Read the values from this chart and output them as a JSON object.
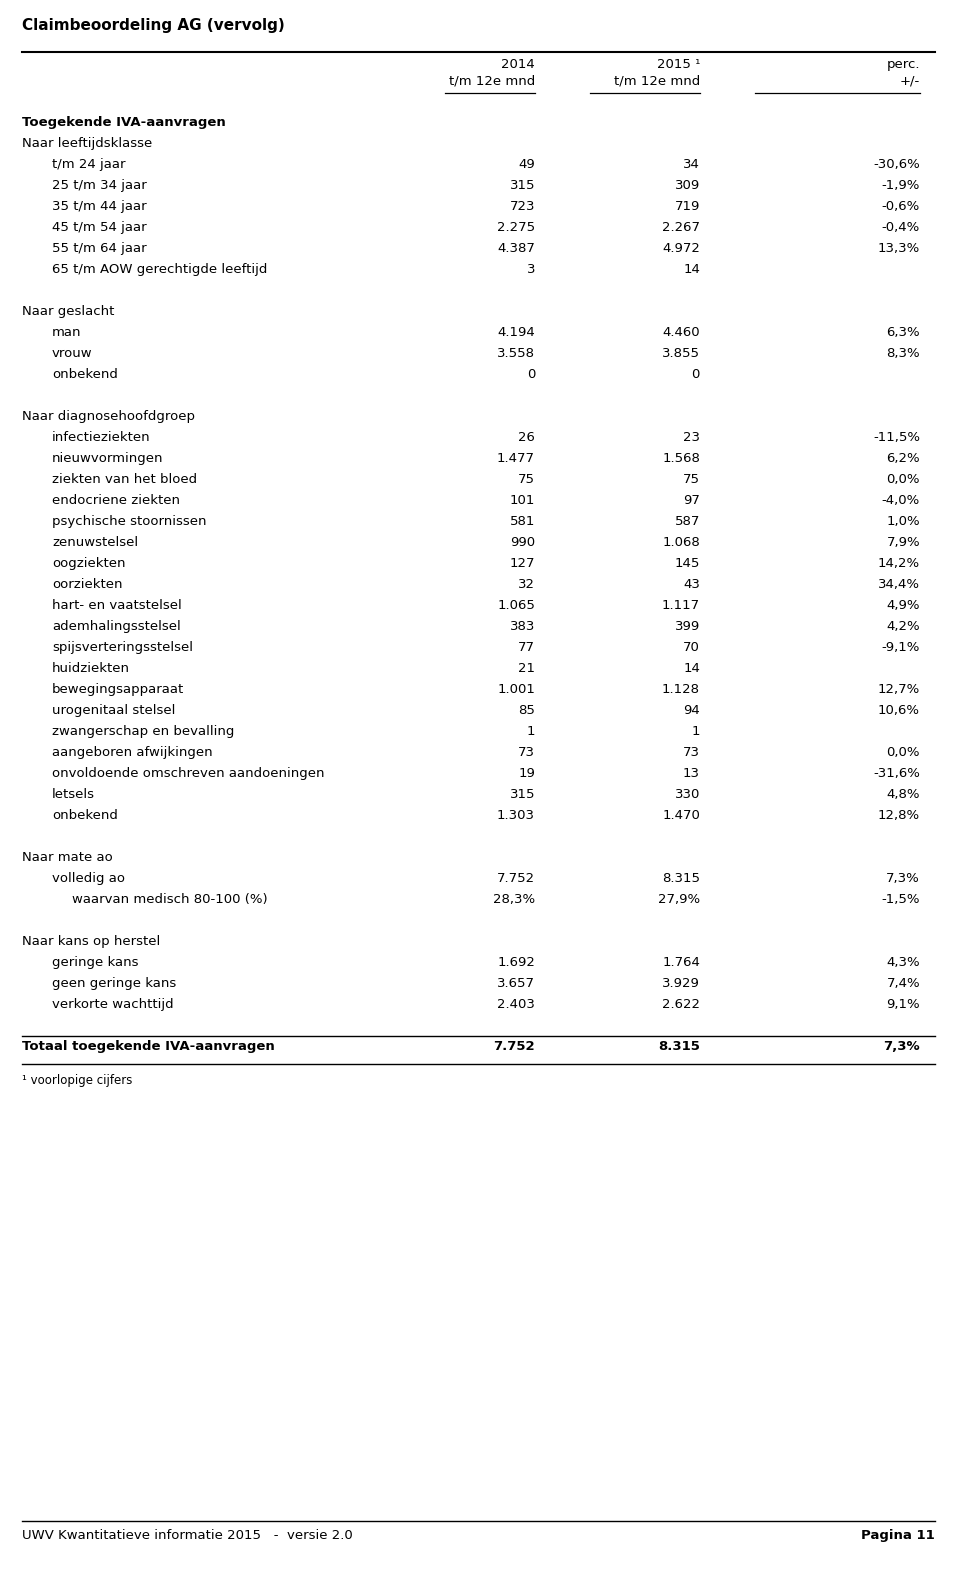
{
  "title": "Claimbeoordeling AG (vervolg)",
  "footer_left": "UWV Kwantitatieve informatie 2015   -  versie 2.0",
  "footer_right": "Pagina 11",
  "footnote": "¹ voorlopige cijfers",
  "rows": [
    {
      "label": "Toegekende IVA-aanvragen",
      "indent": 0,
      "bold": true,
      "v2014": "",
      "v2015": "",
      "perc": ""
    },
    {
      "label": "Naar leeftijdsklasse",
      "indent": 0,
      "bold": false,
      "v2014": "",
      "v2015": "",
      "perc": ""
    },
    {
      "label": "t/m 24 jaar",
      "indent": 2,
      "bold": false,
      "v2014": "49",
      "v2015": "34",
      "perc": "-30,6%"
    },
    {
      "label": "25 t/m 34 jaar",
      "indent": 2,
      "bold": false,
      "v2014": "315",
      "v2015": "309",
      "perc": "-1,9%"
    },
    {
      "label": "35 t/m 44 jaar",
      "indent": 2,
      "bold": false,
      "v2014": "723",
      "v2015": "719",
      "perc": "-0,6%"
    },
    {
      "label": "45 t/m 54 jaar",
      "indent": 2,
      "bold": false,
      "v2014": "2.275",
      "v2015": "2.267",
      "perc": "-0,4%"
    },
    {
      "label": "55 t/m 64 jaar",
      "indent": 2,
      "bold": false,
      "v2014": "4.387",
      "v2015": "4.972",
      "perc": "13,3%"
    },
    {
      "label": "65 t/m AOW gerechtigde leeftijd",
      "indent": 2,
      "bold": false,
      "v2014": "3",
      "v2015": "14",
      "perc": ""
    },
    {
      "label": "",
      "indent": 0,
      "bold": false,
      "v2014": "",
      "v2015": "",
      "perc": ""
    },
    {
      "label": "Naar geslacht",
      "indent": 0,
      "bold": false,
      "v2014": "",
      "v2015": "",
      "perc": ""
    },
    {
      "label": "man",
      "indent": 2,
      "bold": false,
      "v2014": "4.194",
      "v2015": "4.460",
      "perc": "6,3%"
    },
    {
      "label": "vrouw",
      "indent": 2,
      "bold": false,
      "v2014": "3.558",
      "v2015": "3.855",
      "perc": "8,3%"
    },
    {
      "label": "onbekend",
      "indent": 2,
      "bold": false,
      "v2014": "0",
      "v2015": "0",
      "perc": ""
    },
    {
      "label": "",
      "indent": 0,
      "bold": false,
      "v2014": "",
      "v2015": "",
      "perc": ""
    },
    {
      "label": "Naar diagnosehoofdgroep",
      "indent": 0,
      "bold": false,
      "v2014": "",
      "v2015": "",
      "perc": ""
    },
    {
      "label": "infectieziekten",
      "indent": 2,
      "bold": false,
      "v2014": "26",
      "v2015": "23",
      "perc": "-11,5%"
    },
    {
      "label": "nieuwvormingen",
      "indent": 2,
      "bold": false,
      "v2014": "1.477",
      "v2015": "1.568",
      "perc": "6,2%"
    },
    {
      "label": "ziekten van het bloed",
      "indent": 2,
      "bold": false,
      "v2014": "75",
      "v2015": "75",
      "perc": "0,0%"
    },
    {
      "label": "endocriene ziekten",
      "indent": 2,
      "bold": false,
      "v2014": "101",
      "v2015": "97",
      "perc": "-4,0%"
    },
    {
      "label": "psychische stoornissen",
      "indent": 2,
      "bold": false,
      "v2014": "581",
      "v2015": "587",
      "perc": "1,0%"
    },
    {
      "label": "zenuwstelsel",
      "indent": 2,
      "bold": false,
      "v2014": "990",
      "v2015": "1.068",
      "perc": "7,9%"
    },
    {
      "label": "oogziekten",
      "indent": 2,
      "bold": false,
      "v2014": "127",
      "v2015": "145",
      "perc": "14,2%"
    },
    {
      "label": "oorziekten",
      "indent": 2,
      "bold": false,
      "v2014": "32",
      "v2015": "43",
      "perc": "34,4%"
    },
    {
      "label": "hart- en vaatstelsel",
      "indent": 2,
      "bold": false,
      "v2014": "1.065",
      "v2015": "1.117",
      "perc": "4,9%"
    },
    {
      "label": "ademhalingsstelsel",
      "indent": 2,
      "bold": false,
      "v2014": "383",
      "v2015": "399",
      "perc": "4,2%"
    },
    {
      "label": "spijsverteringsstelsel",
      "indent": 2,
      "bold": false,
      "v2014": "77",
      "v2015": "70",
      "perc": "-9,1%"
    },
    {
      "label": "huidziekten",
      "indent": 2,
      "bold": false,
      "v2014": "21",
      "v2015": "14",
      "perc": ""
    },
    {
      "label": "bewegingsapparaat",
      "indent": 2,
      "bold": false,
      "v2014": "1.001",
      "v2015": "1.128",
      "perc": "12,7%"
    },
    {
      "label": "urogenitaal stelsel",
      "indent": 2,
      "bold": false,
      "v2014": "85",
      "v2015": "94",
      "perc": "10,6%"
    },
    {
      "label": "zwangerschap en bevalling",
      "indent": 2,
      "bold": false,
      "v2014": "1",
      "v2015": "1",
      "perc": ""
    },
    {
      "label": "aangeboren afwijkingen",
      "indent": 2,
      "bold": false,
      "v2014": "73",
      "v2015": "73",
      "perc": "0,0%"
    },
    {
      "label": "onvoldoende omschreven aandoeningen",
      "indent": 2,
      "bold": false,
      "v2014": "19",
      "v2015": "13",
      "perc": "-31,6%"
    },
    {
      "label": "letsels",
      "indent": 2,
      "bold": false,
      "v2014": "315",
      "v2015": "330",
      "perc": "4,8%"
    },
    {
      "label": "onbekend",
      "indent": 2,
      "bold": false,
      "v2014": "1.303",
      "v2015": "1.470",
      "perc": "12,8%"
    },
    {
      "label": "",
      "indent": 0,
      "bold": false,
      "v2014": "",
      "v2015": "",
      "perc": ""
    },
    {
      "label": "Naar mate ao",
      "indent": 0,
      "bold": false,
      "v2014": "",
      "v2015": "",
      "perc": ""
    },
    {
      "label": "volledig ao",
      "indent": 2,
      "bold": false,
      "v2014": "7.752",
      "v2015": "8.315",
      "perc": "7,3%"
    },
    {
      "label": "waarvan medisch 80-100 (%)",
      "indent": 3,
      "bold": false,
      "v2014": "28,3%",
      "v2015": "27,9%",
      "perc": "-1,5%"
    },
    {
      "label": "",
      "indent": 0,
      "bold": false,
      "v2014": "",
      "v2015": "",
      "perc": ""
    },
    {
      "label": "Naar kans op herstel",
      "indent": 0,
      "bold": false,
      "v2014": "",
      "v2015": "",
      "perc": ""
    },
    {
      "label": "geringe kans",
      "indent": 2,
      "bold": false,
      "v2014": "1.692",
      "v2015": "1.764",
      "perc": "4,3%"
    },
    {
      "label": "geen geringe kans",
      "indent": 2,
      "bold": false,
      "v2014": "3.657",
      "v2015": "3.929",
      "perc": "7,4%"
    },
    {
      "label": "verkorte wachttijd",
      "indent": 2,
      "bold": false,
      "v2014": "2.403",
      "v2015": "2.622",
      "perc": "9,1%"
    },
    {
      "label": "",
      "indent": 0,
      "bold": false,
      "v2014": "",
      "v2015": "",
      "perc": ""
    },
    {
      "label": "Totaal toegekende IVA-aanvragen",
      "indent": 0,
      "bold": true,
      "v2014": "7.752",
      "v2015": "8.315",
      "perc": "7,3%"
    }
  ],
  "bg_color": "#ffffff",
  "text_color": "#000000",
  "line_color": "#000000",
  "font_size": 9.5,
  "title_font_size": 11.0
}
